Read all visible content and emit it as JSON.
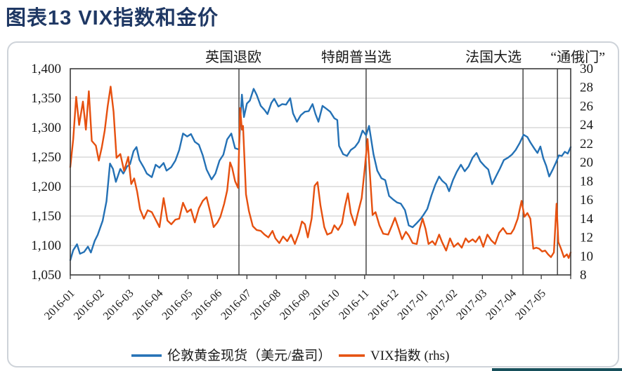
{
  "page": {
    "title": "图表13 VIX指数和金价",
    "footer_bar_color": "#17505b"
  },
  "chart_data": {
    "type": "line",
    "title": "图表13 VIX指数和金价",
    "grid": "horizontal",
    "legend_position": "bottom",
    "x_range": [
      0,
      17
    ],
    "x_unit": "months since 2016-01",
    "x_tick_labels": [
      "2016-01",
      "2016-02",
      "2016-03",
      "2016-04",
      "2016-05",
      "2016-06",
      "2016-07",
      "2016-08",
      "2016-09",
      "2016-10",
      "2016-11",
      "2016-12",
      "2017-01",
      "2017-02",
      "2017-03",
      "2017-04",
      "2017-05"
    ],
    "left_axis": {
      "min": 1050,
      "max": 1400,
      "tick_values": [
        1400,
        1350,
        1300,
        1250,
        1200,
        1150,
        1100,
        1050
      ],
      "tick_labels": [
        "1,400",
        "1,350",
        "1,300",
        "1,250",
        "1,200",
        "1,150",
        "1,100",
        "1,050"
      ]
    },
    "right_axis": {
      "min": 8,
      "max": 30,
      "tick_values": [
        30,
        28,
        26,
        24,
        22,
        20,
        18,
        16,
        14,
        12,
        10,
        8
      ],
      "tick_labels": [
        "30",
        "28",
        "26",
        "24",
        "22",
        "20",
        "18",
        "16",
        "14",
        "12",
        "10",
        "8"
      ]
    },
    "events": [
      {
        "label": "英国退欧",
        "x": 5.73
      },
      {
        "label": "特朗普当选",
        "x": 10.05
      },
      {
        "label": "法国大选",
        "x": 15.38
      },
      {
        "label": "“通俄门”",
        "x": 16.55
      }
    ],
    "series": [
      {
        "name": "伦敦黄金现货（美元/盎司）",
        "axis": "left",
        "color": "#2471b5",
        "points": [
          [
            0.0,
            1075
          ],
          [
            0.1,
            1092
          ],
          [
            0.23,
            1102
          ],
          [
            0.33,
            1086
          ],
          [
            0.47,
            1089
          ],
          [
            0.6,
            1098
          ],
          [
            0.7,
            1088
          ],
          [
            0.83,
            1108
          ],
          [
            0.93,
            1118
          ],
          [
            1.1,
            1142
          ],
          [
            1.23,
            1175
          ],
          [
            1.35,
            1239
          ],
          [
            1.45,
            1230
          ],
          [
            1.55,
            1208
          ],
          [
            1.7,
            1230
          ],
          [
            1.8,
            1222
          ],
          [
            1.93,
            1234
          ],
          [
            2.03,
            1238
          ],
          [
            2.15,
            1260
          ],
          [
            2.25,
            1267
          ],
          [
            2.35,
            1245
          ],
          [
            2.5,
            1232
          ],
          [
            2.6,
            1222
          ],
          [
            2.77,
            1216
          ],
          [
            2.9,
            1237
          ],
          [
            3.03,
            1232
          ],
          [
            3.17,
            1240
          ],
          [
            3.27,
            1227
          ],
          [
            3.43,
            1233
          ],
          [
            3.57,
            1244
          ],
          [
            3.7,
            1262
          ],
          [
            3.83,
            1290
          ],
          [
            3.97,
            1285
          ],
          [
            4.1,
            1289
          ],
          [
            4.23,
            1276
          ],
          [
            4.37,
            1271
          ],
          [
            4.5,
            1253
          ],
          [
            4.63,
            1229
          ],
          [
            4.8,
            1212
          ],
          [
            4.93,
            1222
          ],
          [
            5.07,
            1244
          ],
          [
            5.2,
            1254
          ],
          [
            5.33,
            1280
          ],
          [
            5.47,
            1290
          ],
          [
            5.6,
            1265
          ],
          [
            5.73,
            1263
          ],
          [
            5.78,
            1316
          ],
          [
            5.83,
            1356
          ],
          [
            5.9,
            1318
          ],
          [
            6.0,
            1341
          ],
          [
            6.1,
            1346
          ],
          [
            6.23,
            1366
          ],
          [
            6.33,
            1356
          ],
          [
            6.47,
            1337
          ],
          [
            6.6,
            1330
          ],
          [
            6.7,
            1323
          ],
          [
            6.83,
            1342
          ],
          [
            6.93,
            1349
          ],
          [
            7.07,
            1336
          ],
          [
            7.2,
            1340
          ],
          [
            7.33,
            1339
          ],
          [
            7.47,
            1350
          ],
          [
            7.57,
            1324
          ],
          [
            7.7,
            1310
          ],
          [
            7.83,
            1321
          ],
          [
            7.97,
            1327
          ],
          [
            8.1,
            1328
          ],
          [
            8.23,
            1340
          ],
          [
            8.33,
            1323
          ],
          [
            8.43,
            1310
          ],
          [
            8.57,
            1337
          ],
          [
            8.7,
            1332
          ],
          [
            8.83,
            1327
          ],
          [
            8.97,
            1316
          ],
          [
            9.07,
            1313
          ],
          [
            9.13,
            1269
          ],
          [
            9.27,
            1255
          ],
          [
            9.4,
            1252
          ],
          [
            9.53,
            1262
          ],
          [
            9.67,
            1267
          ],
          [
            9.8,
            1276
          ],
          [
            9.93,
            1295
          ],
          [
            10.05,
            1287
          ],
          [
            10.15,
            1303
          ],
          [
            10.3,
            1255
          ],
          [
            10.43,
            1227
          ],
          [
            10.57,
            1214
          ],
          [
            10.7,
            1211
          ],
          [
            10.83,
            1184
          ],
          [
            10.97,
            1178
          ],
          [
            11.1,
            1173
          ],
          [
            11.23,
            1171
          ],
          [
            11.37,
            1160
          ],
          [
            11.5,
            1134
          ],
          [
            11.63,
            1131
          ],
          [
            11.77,
            1138
          ],
          [
            11.9,
            1145
          ],
          [
            12.0,
            1152
          ],
          [
            12.13,
            1162
          ],
          [
            12.27,
            1185
          ],
          [
            12.4,
            1203
          ],
          [
            12.53,
            1217
          ],
          [
            12.63,
            1210
          ],
          [
            12.77,
            1204
          ],
          [
            12.87,
            1192
          ],
          [
            13.0,
            1211
          ],
          [
            13.13,
            1225
          ],
          [
            13.27,
            1237
          ],
          [
            13.4,
            1226
          ],
          [
            13.53,
            1234
          ],
          [
            13.67,
            1249
          ],
          [
            13.8,
            1257
          ],
          [
            13.93,
            1243
          ],
          [
            14.07,
            1235
          ],
          [
            14.2,
            1229
          ],
          [
            14.33,
            1204
          ],
          [
            14.47,
            1218
          ],
          [
            14.6,
            1231
          ],
          [
            14.73,
            1245
          ],
          [
            14.87,
            1249
          ],
          [
            15.0,
            1254
          ],
          [
            15.13,
            1262
          ],
          [
            15.27,
            1274
          ],
          [
            15.4,
            1288
          ],
          [
            15.53,
            1284
          ],
          [
            15.63,
            1275
          ],
          [
            15.77,
            1264
          ],
          [
            15.87,
            1257
          ],
          [
            15.97,
            1268
          ],
          [
            16.07,
            1248
          ],
          [
            16.17,
            1235
          ],
          [
            16.27,
            1217
          ],
          [
            16.4,
            1230
          ],
          [
            16.5,
            1241
          ],
          [
            16.6,
            1253
          ],
          [
            16.7,
            1252
          ],
          [
            16.8,
            1259
          ],
          [
            16.9,
            1256
          ],
          [
            17.0,
            1267
          ]
        ]
      },
      {
        "name": "VIX指数 (rhs)",
        "axis": "right",
        "color": "#e6500f",
        "points": [
          [
            0.0,
            19.5
          ],
          [
            0.1,
            22.5
          ],
          [
            0.2,
            27.0
          ],
          [
            0.3,
            24.0
          ],
          [
            0.43,
            26.5
          ],
          [
            0.53,
            23.5
          ],
          [
            0.63,
            27.6
          ],
          [
            0.73,
            22.3
          ],
          [
            0.87,
            21.8
          ],
          [
            0.97,
            20.2
          ],
          [
            1.07,
            21.6
          ],
          [
            1.17,
            23.4
          ],
          [
            1.27,
            26.0
          ],
          [
            1.37,
            28.1
          ],
          [
            1.47,
            25.4
          ],
          [
            1.57,
            20.5
          ],
          [
            1.7,
            20.9
          ],
          [
            1.83,
            19.1
          ],
          [
            1.97,
            20.6
          ],
          [
            2.07,
            17.7
          ],
          [
            2.17,
            18.3
          ],
          [
            2.27,
            16.9
          ],
          [
            2.37,
            15.0
          ],
          [
            2.5,
            14.0
          ],
          [
            2.63,
            14.9
          ],
          [
            2.77,
            14.7
          ],
          [
            2.9,
            13.9
          ],
          [
            3.03,
            13.1
          ],
          [
            3.17,
            16.2
          ],
          [
            3.3,
            13.8
          ],
          [
            3.43,
            13.4
          ],
          [
            3.57,
            13.9
          ],
          [
            3.7,
            14.0
          ],
          [
            3.83,
            15.7
          ],
          [
            3.97,
            14.7
          ],
          [
            4.1,
            15.0
          ],
          [
            4.23,
            13.6
          ],
          [
            4.37,
            15.1
          ],
          [
            4.5,
            15.9
          ],
          [
            4.63,
            16.3
          ],
          [
            4.77,
            14.5
          ],
          [
            4.87,
            13.1
          ],
          [
            5.0,
            13.6
          ],
          [
            5.1,
            14.2
          ],
          [
            5.23,
            15.6
          ],
          [
            5.33,
            17.0
          ],
          [
            5.43,
            20.0
          ],
          [
            5.5,
            19.4
          ],
          [
            5.6,
            18.0
          ],
          [
            5.7,
            17.3
          ],
          [
            5.77,
            25.8
          ],
          [
            5.83,
            23.5
          ],
          [
            5.87,
            23.9
          ],
          [
            5.97,
            16.6
          ],
          [
            6.07,
            14.8
          ],
          [
            6.2,
            13.2
          ],
          [
            6.33,
            12.8
          ],
          [
            6.47,
            12.7
          ],
          [
            6.6,
            12.3
          ],
          [
            6.73,
            12.0
          ],
          [
            6.87,
            12.7
          ],
          [
            6.97,
            11.9
          ],
          [
            7.1,
            11.4
          ],
          [
            7.23,
            12.1
          ],
          [
            7.37,
            11.6
          ],
          [
            7.5,
            12.3
          ],
          [
            7.63,
            11.3
          ],
          [
            7.77,
            12.5
          ],
          [
            7.87,
            13.7
          ],
          [
            7.97,
            13.4
          ],
          [
            8.07,
            12.0
          ],
          [
            8.2,
            14.0
          ],
          [
            8.3,
            17.5
          ],
          [
            8.4,
            17.9
          ],
          [
            8.5,
            15.4
          ],
          [
            8.63,
            13.1
          ],
          [
            8.73,
            12.3
          ],
          [
            8.87,
            12.5
          ],
          [
            8.97,
            13.3
          ],
          [
            9.1,
            12.8
          ],
          [
            9.23,
            13.5
          ],
          [
            9.33,
            15.3
          ],
          [
            9.43,
            16.7
          ],
          [
            9.53,
            14.6
          ],
          [
            9.67,
            13.3
          ],
          [
            9.77,
            14.6
          ],
          [
            9.9,
            16.2
          ],
          [
            10.0,
            19.2
          ],
          [
            10.1,
            22.5
          ],
          [
            10.18,
            18.7
          ],
          [
            10.27,
            14.4
          ],
          [
            10.37,
            14.7
          ],
          [
            10.5,
            13.3
          ],
          [
            10.63,
            12.4
          ],
          [
            10.8,
            12.3
          ],
          [
            10.93,
            13.3
          ],
          [
            11.03,
            14.1
          ],
          [
            11.17,
            12.8
          ],
          [
            11.27,
            11.8
          ],
          [
            11.4,
            12.6
          ],
          [
            11.5,
            12.2
          ],
          [
            11.63,
            11.4
          ],
          [
            11.77,
            11.3
          ],
          [
            11.87,
            12.9
          ],
          [
            11.97,
            14.0
          ],
          [
            12.07,
            12.9
          ],
          [
            12.17,
            11.3
          ],
          [
            12.3,
            11.6
          ],
          [
            12.4,
            11.2
          ],
          [
            12.53,
            12.3
          ],
          [
            12.63,
            11.5
          ],
          [
            12.77,
            10.6
          ],
          [
            12.9,
            11.9
          ],
          [
            13.03,
            11.0
          ],
          [
            13.17,
            11.4
          ],
          [
            13.3,
            10.9
          ],
          [
            13.43,
            11.9
          ],
          [
            13.53,
            11.5
          ],
          [
            13.67,
            11.8
          ],
          [
            13.77,
            11.5
          ],
          [
            13.9,
            12.1
          ],
          [
            14.03,
            11.0
          ],
          [
            14.17,
            12.3
          ],
          [
            14.3,
            11.7
          ],
          [
            14.43,
            11.3
          ],
          [
            14.57,
            12.5
          ],
          [
            14.7,
            13.0
          ],
          [
            14.83,
            12.4
          ],
          [
            14.97,
            12.4
          ],
          [
            15.07,
            12.9
          ],
          [
            15.2,
            14.0
          ],
          [
            15.33,
            15.9
          ],
          [
            15.43,
            14.2
          ],
          [
            15.53,
            14.6
          ],
          [
            15.63,
            14.0
          ],
          [
            15.73,
            10.8
          ],
          [
            15.83,
            10.9
          ],
          [
            15.93,
            10.8
          ],
          [
            16.03,
            10.5
          ],
          [
            16.13,
            10.6
          ],
          [
            16.23,
            10.2
          ],
          [
            16.33,
            9.9
          ],
          [
            16.43,
            10.4
          ],
          [
            16.52,
            15.6
          ],
          [
            16.58,
            11.5
          ],
          [
            16.67,
            10.8
          ],
          [
            16.77,
            9.9
          ],
          [
            16.87,
            10.2
          ],
          [
            16.93,
            9.8
          ],
          [
            17.0,
            10.4
          ]
        ]
      }
    ]
  }
}
